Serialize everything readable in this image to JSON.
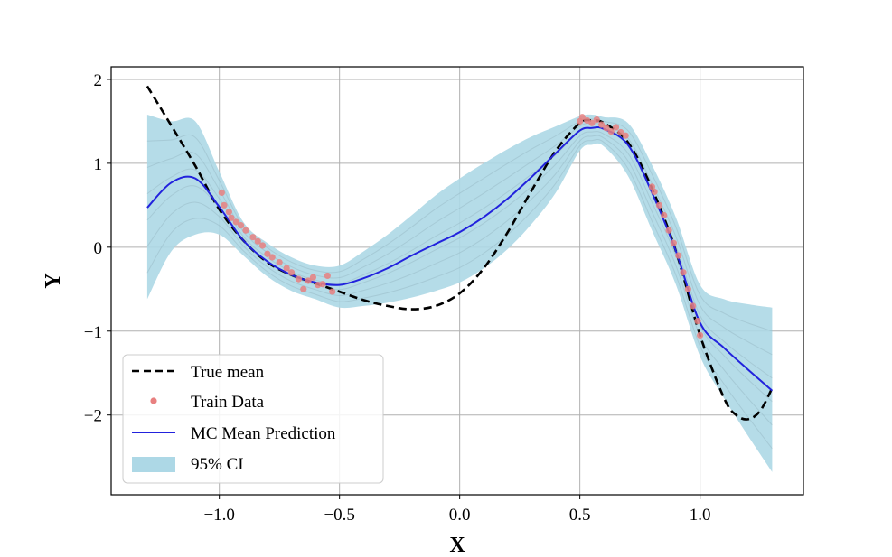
{
  "chart_data": {
    "type": "line",
    "title": "",
    "xlabel": "X",
    "ylabel": "Y",
    "xlim": [
      -1.45,
      1.43
    ],
    "ylim": [
      -2.95,
      2.15
    ],
    "xticks": [
      -1.0,
      -0.5,
      0.0,
      0.5,
      1.0
    ],
    "xtick_labels": [
      "−1.0",
      "−0.5",
      "0.0",
      "0.5",
      "1.0"
    ],
    "yticks": [
      -2,
      -1,
      0,
      1,
      2
    ],
    "ytick_labels": [
      "−2",
      "−1",
      "0",
      "1",
      "2"
    ],
    "grid": true,
    "legend_position": "lower-left",
    "series": [
      {
        "name": "True mean",
        "style": "dashed",
        "color": "#000000",
        "x": [
          -1.3,
          -1.2,
          -1.1,
          -1.0,
          -0.9,
          -0.8,
          -0.7,
          -0.6,
          -0.5,
          -0.4,
          -0.3,
          -0.2,
          -0.1,
          0.0,
          0.1,
          0.2,
          0.3,
          0.4,
          0.5,
          0.55,
          0.6,
          0.7,
          0.8,
          0.9,
          1.0,
          1.1,
          1.15,
          1.2,
          1.25,
          1.3
        ],
        "y": [
          1.92,
          1.45,
          0.97,
          0.45,
          0.08,
          -0.18,
          -0.33,
          -0.43,
          -0.53,
          -0.63,
          -0.7,
          -0.74,
          -0.7,
          -0.55,
          -0.25,
          0.18,
          0.68,
          1.15,
          1.48,
          1.51,
          1.48,
          1.25,
          0.7,
          -0.05,
          -1.05,
          -1.8,
          -2.0,
          -2.05,
          -1.95,
          -1.68
        ]
      },
      {
        "name": "MC Mean Prediction",
        "style": "solid",
        "color": "#2222dd",
        "x": [
          -1.3,
          -1.2,
          -1.1,
          -1.0,
          -0.9,
          -0.8,
          -0.7,
          -0.6,
          -0.5,
          -0.4,
          -0.3,
          -0.2,
          -0.1,
          0.0,
          0.1,
          0.2,
          0.3,
          0.4,
          0.5,
          0.55,
          0.6,
          0.7,
          0.8,
          0.9,
          1.0,
          1.1,
          1.2,
          1.3
        ],
        "y": [
          0.47,
          0.77,
          0.82,
          0.48,
          0.08,
          -0.17,
          -0.33,
          -0.42,
          -0.45,
          -0.37,
          -0.25,
          -0.1,
          0.04,
          0.18,
          0.36,
          0.58,
          0.84,
          1.12,
          1.39,
          1.42,
          1.41,
          1.22,
          0.65,
          -0.05,
          -0.9,
          -1.2,
          -1.46,
          -1.71
        ]
      }
    ],
    "confidence_band": {
      "name": "95% CI",
      "color": "#add8e6",
      "x": [
        -1.3,
        -1.2,
        -1.1,
        -1.0,
        -0.9,
        -0.8,
        -0.7,
        -0.6,
        -0.5,
        -0.4,
        -0.3,
        -0.2,
        -0.1,
        0.0,
        0.1,
        0.2,
        0.3,
        0.4,
        0.5,
        0.55,
        0.6,
        0.7,
        0.8,
        0.9,
        1.0,
        1.1,
        1.2,
        1.3
      ],
      "upper": [
        1.58,
        1.5,
        1.5,
        0.9,
        0.3,
        0.05,
        -0.12,
        -0.22,
        -0.22,
        -0.05,
        0.15,
        0.38,
        0.62,
        0.82,
        1.0,
        1.17,
        1.32,
        1.44,
        1.56,
        1.58,
        1.55,
        1.48,
        0.98,
        0.35,
        -0.45,
        -0.62,
        -0.68,
        -0.72
      ],
      "lower": [
        -0.62,
        -0.05,
        0.15,
        0.15,
        -0.1,
        -0.35,
        -0.52,
        -0.62,
        -0.72,
        -0.7,
        -0.66,
        -0.6,
        -0.52,
        -0.42,
        -0.25,
        -0.02,
        0.28,
        0.65,
        1.15,
        1.22,
        1.2,
        0.85,
        0.2,
        -0.45,
        -1.3,
        -1.8,
        -2.25,
        -2.68
      ]
    },
    "scatter": {
      "name": "Train Data",
      "color": "#e88080",
      "x": [
        -0.99,
        -0.98,
        -0.96,
        -0.95,
        -0.93,
        -0.91,
        -0.89,
        -0.86,
        -0.84,
        -0.82,
        -0.8,
        -0.78,
        -0.75,
        -0.72,
        -0.7,
        -0.67,
        -0.65,
        -0.63,
        -0.61,
        -0.59,
        -0.57,
        -0.55,
        -0.53,
        0.5,
        0.51,
        0.53,
        0.55,
        0.57,
        0.59,
        0.61,
        0.63,
        0.65,
        0.67,
        0.69,
        0.8,
        0.81,
        0.83,
        0.85,
        0.87,
        0.89,
        0.91,
        0.93,
        0.95,
        0.97,
        0.99,
        1.0
      ],
      "y": [
        0.65,
        0.5,
        0.42,
        0.35,
        0.3,
        0.26,
        0.2,
        0.12,
        0.07,
        0.02,
        -0.08,
        -0.12,
        -0.18,
        -0.25,
        -0.3,
        -0.38,
        -0.5,
        -0.4,
        -0.36,
        -0.45,
        -0.44,
        -0.34,
        -0.53,
        1.5,
        1.55,
        1.51,
        1.48,
        1.52,
        1.46,
        1.42,
        1.38,
        1.43,
        1.37,
        1.33,
        0.72,
        0.66,
        0.5,
        0.38,
        0.2,
        0.05,
        -0.1,
        -0.3,
        -0.5,
        -0.7,
        -0.88,
        -1.05
      ]
    },
    "legend": [
      {
        "label": "True mean",
        "kind": "dashed-line"
      },
      {
        "label": "Train Data",
        "kind": "dot"
      },
      {
        "label": "MC Mean Prediction",
        "kind": "line"
      },
      {
        "label": "95% CI",
        "kind": "patch"
      }
    ]
  }
}
